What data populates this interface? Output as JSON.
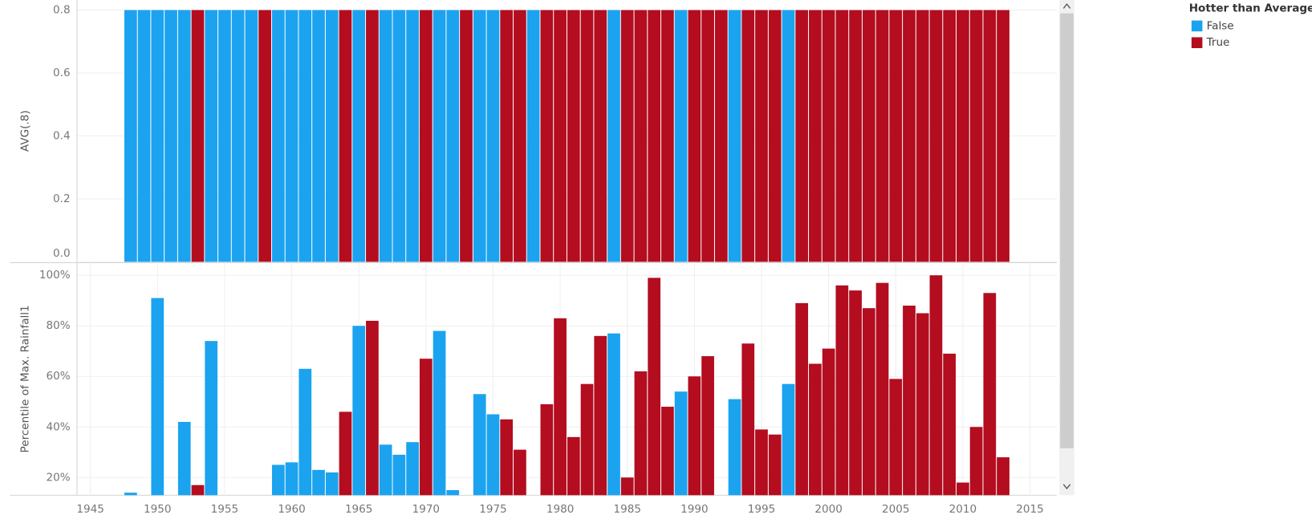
{
  "chart_data": [
    {
      "type": "bar",
      "y_label": "AVG(.8)",
      "x": [
        1948,
        1949,
        1950,
        1951,
        1952,
        1953,
        1954,
        1955,
        1956,
        1957,
        1958,
        1959,
        1960,
        1961,
        1962,
        1963,
        1964,
        1965,
        1966,
        1967,
        1968,
        1969,
        1970,
        1971,
        1972,
        1973,
        1974,
        1975,
        1976,
        1977,
        1978,
        1979,
        1980,
        1981,
        1982,
        1983,
        1984,
        1985,
        1986,
        1987,
        1988,
        1989,
        1990,
        1991,
        1992,
        1993,
        1994,
        1995,
        1996,
        1997,
        1998,
        1999,
        2000,
        2001,
        2002,
        2003,
        2004,
        2005,
        2006,
        2007,
        2008,
        2009,
        2010,
        2011,
        2012,
        2013
      ],
      "series": [
        {
          "name": "False",
          "color": "#1ba3ef",
          "values": [
            0.8,
            0.8,
            0.8,
            0.8,
            0.8,
            null,
            0.8,
            0.8,
            0.8,
            0.8,
            null,
            0.8,
            0.8,
            0.8,
            0.8,
            0.8,
            null,
            0.8,
            null,
            0.8,
            0.8,
            0.8,
            null,
            0.8,
            0.8,
            null,
            0.8,
            0.8,
            null,
            null,
            0.8,
            null,
            null,
            null,
            null,
            null,
            0.8,
            null,
            null,
            null,
            null,
            0.8,
            null,
            null,
            null,
            0.8,
            null,
            null,
            null,
            0.8,
            null,
            null,
            null,
            null,
            null,
            null,
            null,
            null,
            null,
            null,
            null,
            null,
            null,
            null,
            null,
            null
          ]
        },
        {
          "name": "True",
          "color": "#b30d1f",
          "values": [
            null,
            null,
            null,
            null,
            null,
            0.8,
            null,
            null,
            null,
            null,
            0.8,
            null,
            null,
            null,
            null,
            null,
            0.8,
            null,
            0.8,
            null,
            null,
            null,
            0.8,
            null,
            null,
            0.8,
            null,
            null,
            0.8,
            0.8,
            null,
            0.8,
            0.8,
            0.8,
            0.8,
            0.8,
            null,
            0.8,
            0.8,
            0.8,
            0.8,
            null,
            0.8,
            0.8,
            0.8,
            null,
            0.8,
            0.8,
            0.8,
            null,
            0.8,
            0.8,
            0.8,
            0.8,
            0.8,
            0.8,
            0.8,
            0.8,
            0.8,
            0.8,
            0.8,
            0.8,
            0.8,
            0.8,
            0.8,
            0.8
          ]
        }
      ],
      "xlim": [
        1944,
        2017
      ],
      "ylim": [
        0,
        0.8
      ],
      "yticks": [
        {
          "value": 0,
          "label": "0.0"
        },
        0.2,
        0.4,
        0.6,
        0.8
      ],
      "grid": true,
      "legend": {
        "title": "Hotter than Average",
        "position": "right"
      }
    },
    {
      "type": "bar",
      "y_label": "Percentile of Max. Rainfall1",
      "x": [
        1948,
        1949,
        1950,
        1951,
        1952,
        1953,
        1954,
        1955,
        1956,
        1957,
        1958,
        1959,
        1960,
        1961,
        1962,
        1963,
        1964,
        1965,
        1966,
        1967,
        1968,
        1969,
        1970,
        1971,
        1972,
        1973,
        1974,
        1975,
        1976,
        1977,
        1978,
        1979,
        1980,
        1981,
        1982,
        1983,
        1984,
        1985,
        1986,
        1987,
        1988,
        1989,
        1990,
        1991,
        1992,
        1993,
        1994,
        1995,
        1996,
        1997,
        1998,
        1999,
        2000,
        2001,
        2002,
        2003,
        2004,
        2005,
        2006,
        2007,
        2008,
        2009,
        2010,
        2011,
        2012,
        2013
      ],
      "series": [
        {
          "name": "False",
          "color": "#1ba3ef",
          "values": [
            14,
            null,
            91,
            null,
            42,
            null,
            74,
            null,
            null,
            null,
            null,
            25,
            26,
            63,
            23,
            22,
            null,
            80,
            null,
            33,
            29,
            34,
            null,
            78,
            15,
            null,
            53,
            45,
            null,
            null,
            null,
            null,
            null,
            null,
            null,
            null,
            77,
            null,
            null,
            null,
            null,
            54,
            null,
            null,
            null,
            51,
            null,
            null,
            null,
            57,
            null,
            null,
            null,
            null,
            null,
            null,
            null,
            null,
            null,
            null,
            null,
            null,
            null,
            null,
            null,
            null
          ]
        },
        {
          "name": "True",
          "color": "#b30d1f",
          "values": [
            null,
            null,
            null,
            null,
            null,
            17,
            null,
            null,
            null,
            null,
            null,
            null,
            null,
            null,
            null,
            null,
            46,
            null,
            82,
            null,
            null,
            null,
            67,
            null,
            null,
            null,
            null,
            null,
            43,
            31,
            null,
            49,
            83,
            36,
            57,
            76,
            null,
            20,
            62,
            99,
            48,
            null,
            60,
            68,
            null,
            null,
            73,
            39,
            37,
            null,
            89,
            65,
            71,
            96,
            94,
            87,
            97,
            59,
            88,
            85,
            100,
            69,
            18,
            40,
            93,
            28
          ]
        }
      ],
      "xlim": [
        1944,
        2017
      ],
      "xticks": [
        1945,
        1950,
        1955,
        1960,
        1965,
        1970,
        1975,
        1980,
        1985,
        1990,
        1995,
        2000,
        2005,
        2010,
        2015
      ],
      "ylim": [
        13,
        105
      ],
      "yticks": [
        {
          "value": 20,
          "label": "20%"
        },
        {
          "value": 40,
          "label": "40%"
        },
        {
          "value": 60,
          "label": "60%"
        },
        {
          "value": 80,
          "label": "80%"
        },
        {
          "value": 100,
          "label": "100%"
        }
      ],
      "grid": true
    }
  ]
}
